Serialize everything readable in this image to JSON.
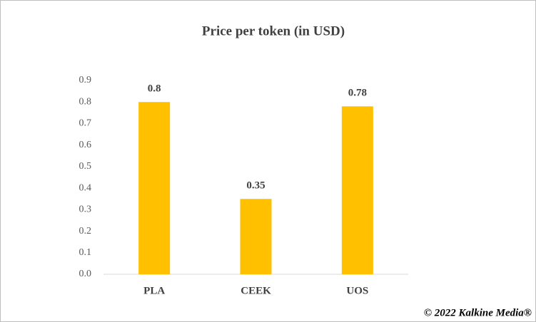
{
  "chart_data": {
    "type": "bar",
    "title": "Price per token (in USD)",
    "categories": [
      "PLA",
      "CEEK",
      "UOS"
    ],
    "values": [
      0.8,
      0.35,
      0.78
    ],
    "color": "#ffc000",
    "ylim": [
      0,
      0.9
    ],
    "yticks": [
      {
        "value": 0,
        "label": "0.0"
      },
      0.1,
      0.2,
      0.3,
      0.4,
      0.5,
      0.6,
      0.7,
      0.8,
      0.9
    ],
    "grid": false,
    "footer": "© 2022 Kalkine Media®"
  }
}
